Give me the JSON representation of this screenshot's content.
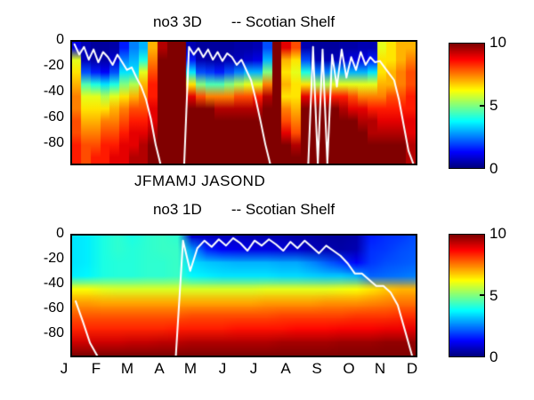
{
  "figure": {
    "background": "#ffffff"
  },
  "titles": {
    "top": "no3 3D       -- Scotian Shelf",
    "bottom": "no3 1D       -- Scotian Shelf"
  },
  "axes": {
    "depth_ticks": [
      "0",
      "-20",
      "-40",
      "-60",
      "-80"
    ],
    "top_month_label": "JFMAMJ JASOND",
    "bottom_month_labels": [
      "J",
      "F",
      "M",
      "A",
      "M",
      "J",
      "J",
      "A",
      "S",
      "O",
      "N",
      "D"
    ]
  },
  "colorbar_ticks": [
    "10",
    "5",
    "0"
  ],
  "chart_data": [
    {
      "type": "heatmap",
      "title": "no3 3D -- Scotian Shelf",
      "variable": "no3",
      "region": "Scotian Shelf",
      "colormap": "jet",
      "clim": [
        0,
        10
      ],
      "years_shown": 3,
      "x_tick_label": "JFMAMJ JASOND",
      "depth_bins": [
        -5,
        -15,
        -25,
        -35,
        -45,
        -55,
        -65,
        -75,
        -85,
        -95
      ],
      "columns": [
        [
          1,
          6,
          6.5,
          7,
          7.5,
          7.5,
          8,
          8,
          8.5,
          8.5
        ],
        [
          0.5,
          0.6,
          2,
          4.5,
          6,
          6.5,
          7,
          7.5,
          8,
          8
        ],
        [
          0.3,
          0.4,
          1.5,
          4,
          6,
          6.5,
          7,
          7.5,
          8,
          8.5
        ],
        [
          0.3,
          0.4,
          1.2,
          3.5,
          5.5,
          6.5,
          7.5,
          8,
          8.5,
          8.5
        ],
        [
          0.4,
          0.8,
          2,
          4,
          6,
          7,
          7.5,
          8,
          8.5,
          9
        ],
        [
          1.5,
          2.5,
          3.5,
          5,
          6.5,
          7.5,
          8,
          8.5,
          9,
          9
        ],
        [
          2.5,
          3,
          3.5,
          5.5,
          7,
          8,
          8.5,
          9,
          9,
          9.5
        ],
        [
          3,
          4,
          6,
          7,
          7.5,
          8,
          8.5,
          9,
          9.5,
          9.5
        ],
        [
          7,
          7.5,
          8,
          8.5,
          8.5,
          9,
          9,
          9.5,
          10,
          10
        ],
        [
          9.5,
          10,
          10,
          10,
          10,
          10,
          10,
          10,
          10,
          10
        ],
        [
          10,
          10,
          10,
          10,
          10,
          10,
          10,
          10,
          10,
          10
        ],
        [
          10,
          10,
          10,
          10,
          10,
          10,
          10,
          10,
          10,
          10
        ],
        [
          0.5,
          1.5,
          3.5,
          6.5,
          9,
          10,
          10,
          10,
          10,
          10
        ],
        [
          0.3,
          0.5,
          2,
          5,
          8,
          10,
          10,
          10,
          10,
          10
        ],
        [
          0.3,
          0.4,
          1.8,
          4.5,
          7.5,
          10,
          10,
          10,
          10,
          10
        ],
        [
          0.3,
          0.4,
          1.5,
          4.5,
          7.5,
          9.5,
          10,
          10,
          10,
          10
        ],
        [
          0.3,
          0.5,
          2,
          5,
          7.5,
          9.5,
          10,
          10,
          10,
          10
        ],
        [
          0.4,
          0.6,
          2.5,
          5.5,
          8,
          9.5,
          10,
          10,
          10,
          10
        ],
        [
          0.4,
          0.8,
          3,
          6,
          8,
          9.5,
          10,
          10,
          10,
          10
        ],
        [
          0.5,
          1,
          3,
          6,
          8.5,
          9.5,
          10,
          10,
          10,
          10
        ],
        [
          2,
          3,
          5,
          7.5,
          9.5,
          10,
          10,
          10,
          10,
          10
        ],
        [
          10,
          10,
          10,
          10,
          10,
          10,
          10,
          10,
          10,
          10
        ],
        [
          9,
          7,
          6.5,
          7,
          6.5,
          7.5,
          8,
          9,
          10,
          10
        ],
        [
          8,
          6.5,
          6,
          6.5,
          6.5,
          7,
          7.5,
          8,
          9.5,
          10
        ],
        [
          0.5,
          2,
          4,
          6.5,
          9,
          10,
          10,
          10,
          10,
          10
        ],
        [
          0.3,
          0.5,
          2.5,
          5.5,
          8.5,
          10,
          10,
          10,
          10,
          10
        ],
        [
          0.3,
          0.5,
          2.5,
          5.5,
          8.5,
          10,
          10,
          10,
          10,
          10
        ],
        [
          0.3,
          0.6,
          3,
          6,
          8.5,
          10,
          10,
          10,
          10,
          10
        ],
        [
          0.4,
          0.8,
          3,
          6,
          8.5,
          9.5,
          10,
          10,
          10,
          10
        ],
        [
          0.4,
          1,
          3,
          6,
          8,
          9,
          10,
          10,
          10,
          10
        ],
        [
          0.5,
          1,
          3,
          6,
          7.5,
          9,
          9.5,
          10,
          10,
          10
        ],
        [
          0.5,
          1.5,
          3.5,
          6,
          7.5,
          8.5,
          9.5,
          9.5,
          10,
          10
        ],
        [
          6,
          6.5,
          6.5,
          7,
          7.5,
          8.5,
          9,
          9.5,
          10,
          10
        ],
        [
          6.5,
          6.5,
          7,
          7,
          8,
          8.5,
          9,
          9.5,
          10,
          10
        ],
        [
          7,
          7,
          7.5,
          7.5,
          8,
          8.5,
          9,
          9.5,
          10,
          10
        ],
        [
          7,
          7.5,
          8,
          8,
          8.5,
          8.5,
          9,
          9,
          9.5,
          9.5
        ]
      ],
      "mld_line": {
        "label": "mixed layer depth overlay",
        "color": "#ffffff",
        "depths": [
          -2,
          -10,
          -4,
          -14,
          -6,
          -16,
          -8,
          -12,
          -18,
          -10,
          -16,
          -22,
          -20,
          -28,
          -35,
          -45,
          -60,
          -80,
          -95,
          null,
          null,
          null,
          null,
          -95,
          -4,
          -10,
          -5,
          -12,
          -6,
          -14,
          -8,
          -15,
          -9,
          -12,
          -18,
          -14,
          -22,
          -30,
          -45,
          -62,
          -80,
          -95,
          null,
          null,
          null,
          null,
          null,
          null,
          null,
          -95,
          -4,
          -95,
          -6,
          -95,
          -10,
          -35,
          -6,
          -28,
          -12,
          -22,
          -8,
          -18,
          -12,
          -16,
          -15,
          -20,
          -25,
          -30,
          -45,
          -65,
          -85,
          -95
        ]
      }
    },
    {
      "type": "heatmap",
      "title": "no3 1D -- Scotian Shelf",
      "variable": "no3",
      "region": "Scotian Shelf",
      "colormap": "jet",
      "clim": [
        0,
        10
      ],
      "years_shown": 1,
      "x_tick_labels": [
        "J",
        "F",
        "M",
        "A",
        "M",
        "J",
        "J",
        "A",
        "S",
        "O",
        "N",
        "D"
      ],
      "depth_bins": [
        -5,
        -15,
        -25,
        -35,
        -45,
        -55,
        -65,
        -75,
        -85,
        -95
      ],
      "columns": [
        [
          3.5,
          3.5,
          3.5,
          3.6,
          6.2,
          7.2,
          7.9,
          8.4,
          9.2,
          10
        ],
        [
          3.6,
          3.6,
          3.6,
          3.7,
          6.2,
          7.2,
          7.9,
          8.4,
          9.2,
          10
        ],
        [
          4,
          4,
          4,
          4,
          6,
          7.1,
          7.9,
          8.4,
          9.2,
          10
        ],
        [
          4.2,
          4.2,
          4.1,
          4.1,
          5.9,
          7.1,
          7.9,
          8.4,
          9.2,
          10
        ],
        [
          4,
          4.1,
          4.1,
          4.1,
          5.9,
          7.1,
          7.9,
          8.4,
          9.3,
          10
        ],
        [
          4.2,
          4.2,
          4.2,
          4.2,
          5.9,
          7.1,
          7.9,
          8.4,
          9.3,
          10
        ],
        [
          4.3,
          4.3,
          4.2,
          4.2,
          5.9,
          7.1,
          7.9,
          8.4,
          9.4,
          10
        ],
        [
          4.2,
          4.3,
          4.3,
          4.3,
          5.9,
          7.1,
          7.9,
          8.5,
          9.4,
          10
        ],
        [
          0.8,
          2.8,
          3.4,
          3.7,
          5.9,
          7.1,
          8,
          8.5,
          9.5,
          10
        ],
        [
          0.7,
          1.6,
          3.2,
          3.6,
          5.9,
          7.1,
          8,
          8.5,
          9.5,
          10
        ],
        [
          0.6,
          1.2,
          3.1,
          3.5,
          5.9,
          7.1,
          8,
          8.5,
          9.5,
          10
        ],
        [
          0.6,
          1.1,
          3,
          3.5,
          5.9,
          7.1,
          8,
          8.6,
          9.5,
          10
        ],
        [
          0.5,
          1,
          3,
          3.5,
          5.9,
          7.1,
          8,
          8.6,
          9.5,
          10
        ],
        [
          0.5,
          1,
          3,
          3.5,
          6,
          7.2,
          8,
          8.6,
          9.5,
          10
        ],
        [
          0.5,
          0.9,
          2.9,
          3.4,
          6,
          7.2,
          8.1,
          8.6,
          9.6,
          10
        ],
        [
          0.4,
          0.8,
          2.9,
          3.4,
          6,
          7.2,
          8.1,
          8.7,
          9.6,
          10
        ],
        [
          0.4,
          0.6,
          2.6,
          3.3,
          6,
          7.2,
          8.1,
          8.7,
          9.6,
          10
        ],
        [
          0.3,
          0.5,
          2.2,
          3.2,
          6,
          7.3,
          8.1,
          8.7,
          9.6,
          10
        ],
        [
          0.3,
          0.4,
          1.8,
          3.2,
          6.1,
          7.3,
          8.1,
          8.8,
          9.7,
          10
        ],
        [
          0.4,
          0.5,
          1.2,
          3,
          6.2,
          7.3,
          8.2,
          8.8,
          9.7,
          10
        ],
        [
          1.5,
          1.7,
          1.8,
          2.2,
          6.5,
          7.4,
          8.2,
          8.8,
          9.7,
          10
        ],
        [
          1.7,
          1.8,
          2,
          2.3,
          6.8,
          7.5,
          8.2,
          8.9,
          9.8,
          10
        ],
        [
          1.8,
          2,
          2.1,
          2.4,
          7,
          7.6,
          8.3,
          8.9,
          9.8,
          10
        ],
        [
          2,
          2.1,
          2.2,
          2.5,
          7,
          7.6,
          8.3,
          9,
          9.8,
          10
        ]
      ],
      "mld_line": {
        "label": "mixed layer depth overlay",
        "color": "#ffffff",
        "depths": [
          -52,
          -68,
          -85,
          -95,
          null,
          null,
          null,
          null,
          null,
          null,
          null,
          null,
          null,
          null,
          -95,
          -4,
          -28,
          -10,
          -4,
          -9,
          -3,
          -8,
          -2,
          -6,
          -12,
          -4,
          -8,
          -3,
          -7,
          -12,
          -5,
          -10,
          -4,
          -9,
          -14,
          -8,
          -12,
          -16,
          -22,
          -30,
          -30,
          -35,
          -40,
          -40,
          -45,
          -55,
          -75,
          -95
        ]
      }
    }
  ]
}
